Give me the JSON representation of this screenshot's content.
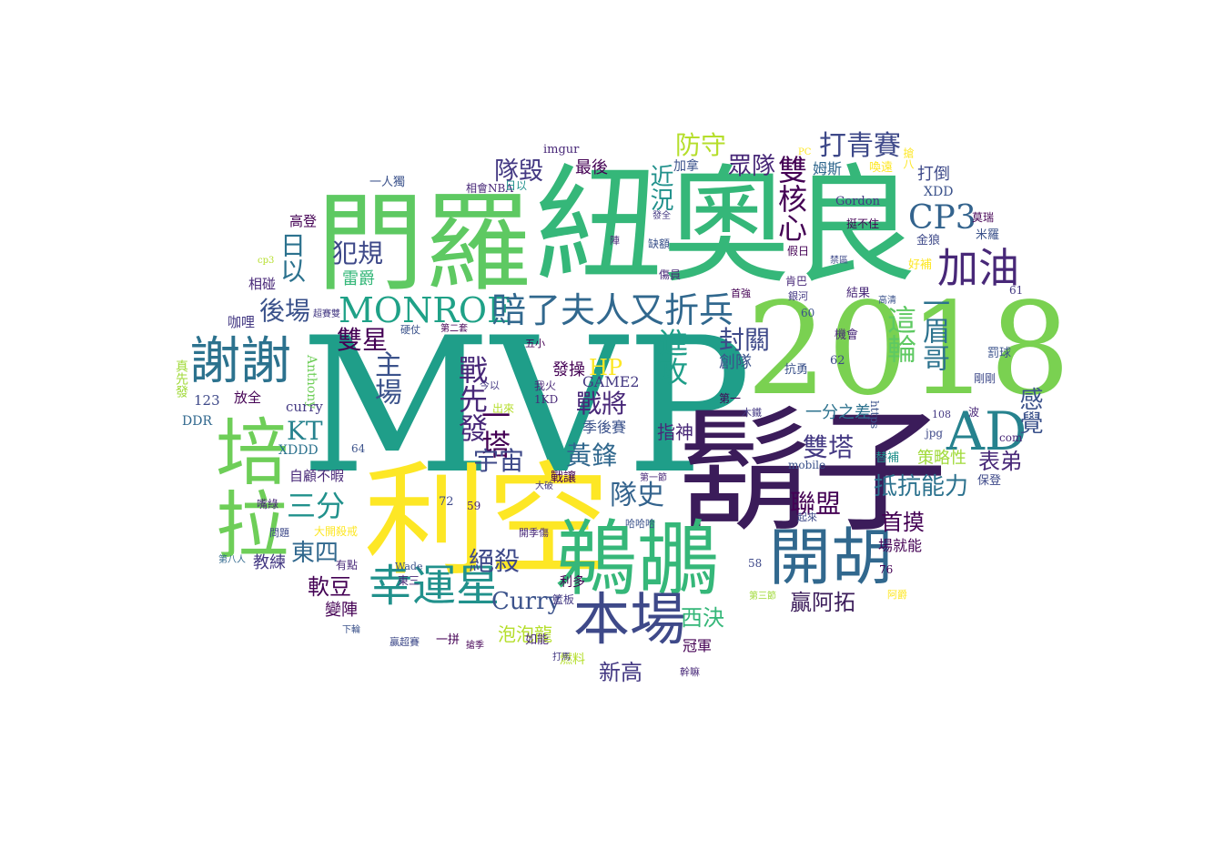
{
  "words": [
    {
      "text": "MVP",
      "color": "#1f9e89",
      "id": "mvp"
    },
    {
      "text": "門羅",
      "color": "#5ec962"
    },
    {
      "text": "紐奧良",
      "color": "#35b779"
    },
    {
      "text": "2018",
      "color": "#7ad151"
    },
    {
      "text": "鬍子",
      "color": "#3b1c5a"
    },
    {
      "text": "利空",
      "color": "#fde725"
    },
    {
      "text": "鵜鶘",
      "color": "#35b779"
    },
    {
      "text": "培拉",
      "color": "#6ece58"
    },
    {
      "text": "AD",
      "color": "#26828e"
    },
    {
      "text": "開胡",
      "color": "#31688e"
    },
    {
      "text": "本場",
      "color": "#3e4989"
    },
    {
      "text": "謝謝",
      "color": "#2c728e"
    },
    {
      "text": "幸運星",
      "color": "#21918c"
    },
    {
      "text": "加油",
      "color": "#482878"
    },
    {
      "text": "CP3",
      "color": "#33638d"
    },
    {
      "text": "MONROE",
      "color": "#1fa187"
    },
    {
      "text": "賠了夫人又折兵",
      "color": "#31688e"
    },
    {
      "text": "打青賽",
      "color": "#3e4989"
    },
    {
      "text": "雙核心",
      "color": "#440154"
    },
    {
      "text": "防守",
      "color": "#b5de2b"
    },
    {
      "text": "眾隊",
      "color": "#482878"
    },
    {
      "text": "隊毀",
      "color": "#443983"
    },
    {
      "text": "近況",
      "color": "#21918c"
    },
    {
      "text": "犯規",
      "color": "#3e4989"
    },
    {
      "text": "日以",
      "color": "#2c728e"
    },
    {
      "text": "後場",
      "color": "#3b528b"
    },
    {
      "text": "雙星",
      "color": "#440154"
    },
    {
      "text": "主場",
      "color": "#3b528b"
    },
    {
      "text": "戰先發",
      "color": "#482878"
    },
    {
      "text": "HP",
      "color": "#fde725"
    },
    {
      "text": "進攻",
      "color": "#1f9e89"
    },
    {
      "text": "封關",
      "color": "#3e4989"
    },
    {
      "text": "這輪",
      "color": "#5ec962"
    },
    {
      "text": "一眉哥",
      "color": "#2c728e"
    },
    {
      "text": "感覺",
      "color": "#3b528b"
    },
    {
      "text": "KT",
      "color": "#26828e"
    },
    {
      "text": "一塔",
      "color": "#440154"
    },
    {
      "text": "宇宙",
      "color": "#3e4989"
    },
    {
      "text": "黃鋒",
      "color": "#31688e"
    },
    {
      "text": "雙塔",
      "color": "#443983"
    },
    {
      "text": "戰將",
      "color": "#482878"
    },
    {
      "text": "三分",
      "color": "#21918c"
    },
    {
      "text": "隊史",
      "color": "#33638d"
    },
    {
      "text": "聯盟",
      "color": "#440154"
    },
    {
      "text": "抵抗能力",
      "color": "#2c728e"
    },
    {
      "text": "東四",
      "color": "#31688e"
    },
    {
      "text": "絕殺",
      "color": "#3e4989"
    },
    {
      "text": "Curry",
      "color": "#3b528b"
    },
    {
      "text": "西決",
      "color": "#35b779"
    },
    {
      "text": "首摸",
      "color": "#440154"
    },
    {
      "text": "表弟",
      "color": "#482878"
    },
    {
      "text": "軟豆",
      "color": "#440154"
    },
    {
      "text": "贏阿拓",
      "color": "#3b1c5a"
    },
    {
      "text": "新高",
      "color": "#443983"
    },
    {
      "text": "泡泡龍",
      "color": "#b5de2b"
    },
    {
      "text": "策略性",
      "color": "#a0da39"
    },
    {
      "text": "季後賽",
      "color": "#3b528b"
    },
    {
      "text": "指神",
      "color": "#482878"
    },
    {
      "text": "發操",
      "color": "#440154"
    },
    {
      "text": "最後",
      "color": "#440154"
    },
    {
      "text": "一分之差",
      "color": "#2c728e"
    },
    {
      "text": "冠軍",
      "color": "#440154"
    },
    {
      "text": "創隊",
      "color": "#3b528b"
    },
    {
      "text": "變陣",
      "color": "#440154"
    },
    {
      "text": "教練",
      "color": "#443983"
    },
    {
      "text": "雷爵",
      "color": "#35b779"
    },
    {
      "text": "GAME2",
      "color": "#443983"
    },
    {
      "text": "自顧不暇",
      "color": "#482878"
    },
    {
      "text": "場就能",
      "color": "#440154"
    },
    {
      "text": "打倒",
      "color": "#3e4989"
    },
    {
      "text": "姆斯",
      "color": "#31688e"
    },
    {
      "text": "加拿",
      "color": "#3b528b"
    },
    {
      "text": "高登",
      "color": "#440154"
    },
    {
      "text": "相碰",
      "color": "#482878"
    },
    {
      "text": "咖哩",
      "color": "#443983"
    },
    {
      "text": "123",
      "color": "#3e4989"
    },
    {
      "text": "放全",
      "color": "#440154"
    },
    {
      "text": "curry",
      "color": "#443983"
    },
    {
      "text": "DDR",
      "color": "#31688e"
    },
    {
      "text": "XDDD",
      "color": "#2c728e"
    },
    {
      "text": "Anthony",
      "color": "#6ece58"
    },
    {
      "text": "真先發",
      "color": "#a0da39"
    },
    {
      "text": "imgur",
      "color": "#482878"
    },
    {
      "text": "一人獨",
      "color": "#3b528b"
    },
    {
      "text": "相會NBA",
      "color": "#482878"
    },
    {
      "text": "日以",
      "color": "#21918c"
    },
    {
      "text": "Gordon",
      "color": "#443983"
    },
    {
      "text": "XDD",
      "color": "#3b528b"
    },
    {
      "text": "金狼",
      "color": "#3e4989"
    },
    {
      "text": "好補",
      "color": "#fde725"
    },
    {
      "text": "挺不住",
      "color": "#440154"
    },
    {
      "text": "搶八",
      "color": "#fde725"
    },
    {
      "text": "喚遠",
      "color": "#fde725"
    },
    {
      "text": "莫瑞",
      "color": "#440154"
    },
    {
      "text": "米羅",
      "color": "#3b528b"
    },
    {
      "text": "保登",
      "color": "#3e4989"
    },
    {
      "text": "罰球",
      "color": "#3b528b"
    },
    {
      "text": "剛剛",
      "color": "#3e4989"
    },
    {
      "text": "結果",
      "color": "#482878"
    },
    {
      "text": "機會",
      "color": "#482878"
    },
    {
      "text": "抗勇",
      "color": "#3b528b"
    },
    {
      "text": "替補",
      "color": "#21918c"
    },
    {
      "text": "mobile",
      "color": "#3b528b"
    },
    {
      "text": "jpg",
      "color": "#3e4989"
    },
    {
      "text": "com",
      "color": "#482878"
    },
    {
      "text": "https",
      "color": "#3b528b"
    },
    {
      "text": "108",
      "color": "#443983"
    },
    {
      "text": "波",
      "color": "#482878"
    },
    {
      "text": "第一",
      "color": "#440154"
    },
    {
      "text": "木鐵",
      "color": "#443983"
    },
    {
      "text": "58",
      "color": "#3e4989"
    },
    {
      "text": "60",
      "color": "#3b528b"
    },
    {
      "text": "61",
      "color": "#443983"
    },
    {
      "text": "62",
      "color": "#3e4989"
    },
    {
      "text": "64",
      "color": "#3b528b"
    },
    {
      "text": "72",
      "color": "#3e4989"
    },
    {
      "text": "59",
      "color": "#482878"
    },
    {
      "text": "76",
      "color": "#440154"
    },
    {
      "text": "1KD",
      "color": "#482878"
    },
    {
      "text": "出來",
      "color": "#b5de2b"
    },
    {
      "text": "我火",
      "color": "#482878"
    },
    {
      "text": "今以",
      "color": "#443983"
    },
    {
      "text": "五小",
      "color": "#440154"
    },
    {
      "text": "嘴綠",
      "color": "#482878"
    },
    {
      "text": "問題",
      "color": "#3e4989"
    },
    {
      "text": "利多",
      "color": "#440154"
    },
    {
      "text": "東三",
      "color": "#482878"
    },
    {
      "text": "籃板",
      "color": "#443983"
    },
    {
      "text": "Wade",
      "color": "#3b528b"
    },
    {
      "text": "如能",
      "color": "#482878"
    },
    {
      "text": "燃料",
      "color": "#b5de2b"
    },
    {
      "text": "幹嘛",
      "color": "#482878"
    },
    {
      "text": "一拼",
      "color": "#440154"
    },
    {
      "text": "贏超賽",
      "color": "#3e4989"
    },
    {
      "text": "大開殺戒",
      "color": "#fde725"
    },
    {
      "text": "第八人",
      "color": "#31688e"
    },
    {
      "text": "有點",
      "color": "#482878"
    },
    {
      "text": "下輪",
      "color": "#3b528b"
    },
    {
      "text": "打馬",
      "color": "#443983"
    },
    {
      "text": "搶季",
      "color": "#440154"
    },
    {
      "text": "開季傷",
      "color": "#482878"
    },
    {
      "text": "哈哈哈",
      "color": "#3b528b"
    },
    {
      "text": "大破",
      "color": "#443983"
    },
    {
      "text": "首強",
      "color": "#440154"
    },
    {
      "text": "肯巴",
      "color": "#482878"
    },
    {
      "text": "銀河",
      "color": "#443983"
    },
    {
      "text": "高清",
      "color": "#3b528b"
    },
    {
      "text": "假日",
      "color": "#440154"
    },
    {
      "text": "傷員",
      "color": "#482878"
    },
    {
      "text": "缺額",
      "color": "#3b528b"
    },
    {
      "text": "發全",
      "color": "#443983"
    },
    {
      "text": "禁區",
      "color": "#3e4989"
    },
    {
      "text": "第三節",
      "color": "#a0da39"
    },
    {
      "text": "阿爵",
      "color": "#fde725"
    },
    {
      "text": "起來",
      "color": "#3e4989"
    },
    {
      "text": "第二套",
      "color": "#440154"
    },
    {
      "text": "硬仗",
      "color": "#3b528b"
    },
    {
      "text": "第一節",
      "color": "#482878"
    },
    {
      "text": "戰讓",
      "color": "#440154"
    },
    {
      "text": "PC",
      "color": "#fde725"
    },
    {
      "text": "cp3",
      "color": "#b5de2b"
    },
    {
      "text": "超賽雙",
      "color": "#443983"
    },
    {
      "text": "陣",
      "color": "#482878"
    }
  ]
}
